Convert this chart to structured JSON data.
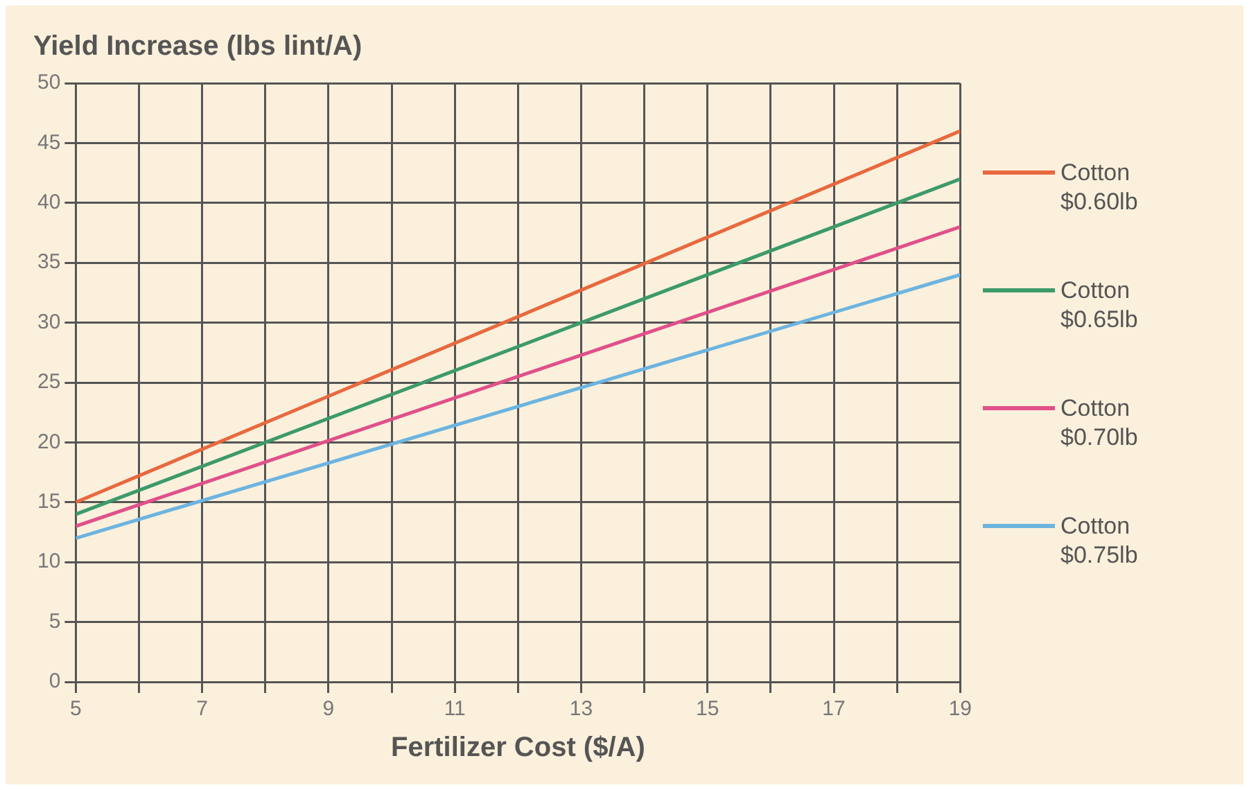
{
  "chart_data": {
    "type": "line",
    "ylabel": "Yield Increase (lbs lint/A)",
    "xlabel": "Fertilizer Cost ($/A)",
    "x": [
      5,
      19
    ],
    "series": [
      {
        "name": "Cotton $0.60lb",
        "color": "#e8693f",
        "values": [
          15,
          46
        ]
      },
      {
        "name": "Cotton $0.65lb",
        "color": "#3d9a6a",
        "values": [
          14,
          42
        ]
      },
      {
        "name": "Cotton $0.70lb",
        "color": "#e0508a",
        "values": [
          13,
          38
        ]
      },
      {
        "name": "Cotton $0.75lb",
        "color": "#6cb4e0",
        "values": [
          12,
          34
        ]
      }
    ],
    "xlim": [
      5,
      19
    ],
    "xticks": [
      5,
      {
        "value": 6,
        "label": null
      },
      7,
      {
        "value": 8,
        "label": null
      },
      9,
      {
        "value": 10,
        "label": null
      },
      11,
      {
        "value": 12,
        "label": null
      },
      13,
      {
        "value": 14,
        "label": null
      },
      15,
      {
        "value": 16,
        "label": null
      },
      17,
      {
        "value": 18,
        "label": null
      },
      19
    ],
    "ylim": [
      0,
      50
    ],
    "yticks": [
      0,
      5,
      10,
      15,
      20,
      25,
      30,
      35,
      40,
      45,
      50
    ],
    "grid": true,
    "legend": "right",
    "marker": "none",
    "line_style": "solid"
  }
}
